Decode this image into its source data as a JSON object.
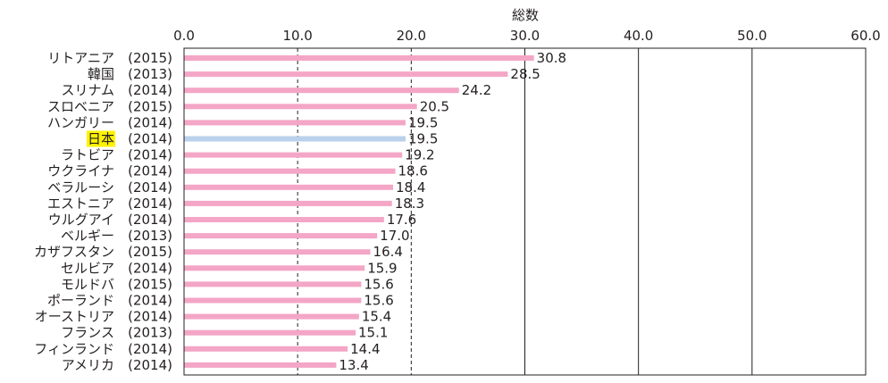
{
  "chart_data": {
    "type": "bar",
    "orientation": "horizontal",
    "title": "総数",
    "xlim": [
      0,
      60
    ],
    "x_ticks": [
      "0.0",
      "10.0",
      "20.0",
      "30.0",
      "40.0",
      "50.0",
      "60.0"
    ],
    "grid": "vertical; dashed at 10.0 and 20.0, solid at 30.0–60.0",
    "categories": [
      {
        "name": "リトアニア",
        "year": "(2015)",
        "value": 30.8,
        "value_label": "30.8"
      },
      {
        "name": "韓国",
        "year": "(2013)",
        "value": 28.5,
        "value_label": "28.5"
      },
      {
        "name": "スリナム",
        "year": "(2014)",
        "value": 24.2,
        "value_label": "24.2"
      },
      {
        "name": "スロベニア",
        "year": "(2015)",
        "value": 20.5,
        "value_label": "20.5"
      },
      {
        "name": "ハンガリー",
        "year": "(2014)",
        "value": 19.5,
        "value_label": "19.5"
      },
      {
        "name": "日本",
        "year": "(2014)",
        "value": 19.5,
        "value_label": "19.5",
        "highlight": true
      },
      {
        "name": "ラトビア",
        "year": "(2014)",
        "value": 19.2,
        "value_label": "19.2"
      },
      {
        "name": "ウクライナ",
        "year": "(2014)",
        "value": 18.6,
        "value_label": "18.6"
      },
      {
        "name": "ベラルーシ",
        "year": "(2014)",
        "value": 18.4,
        "value_label": "18.4"
      },
      {
        "name": "エストニア",
        "year": "(2014)",
        "value": 18.3,
        "value_label": "18.3"
      },
      {
        "name": "ウルグアイ",
        "year": "(2014)",
        "value": 17.6,
        "value_label": "17.6"
      },
      {
        "name": "ベルギー",
        "year": "(2013)",
        "value": 17.0,
        "value_label": "17.0"
      },
      {
        "name": "カザフスタン",
        "year": "(2015)",
        "value": 16.4,
        "value_label": "16.4"
      },
      {
        "name": "セルビア",
        "year": "(2014)",
        "value": 15.9,
        "value_label": "15.9"
      },
      {
        "name": "モルドバ",
        "year": "(2015)",
        "value": 15.6,
        "value_label": "15.6"
      },
      {
        "name": "ポーランド",
        "year": "(2014)",
        "value": 15.6,
        "value_label": "15.6"
      },
      {
        "name": "オーストリア",
        "year": "(2014)",
        "value": 15.4,
        "value_label": "15.4"
      },
      {
        "name": "フランス",
        "year": "(2013)",
        "value": 15.1,
        "value_label": "15.1"
      },
      {
        "name": "フィンランド",
        "year": "(2014)",
        "value": 14.4,
        "value_label": "14.4"
      },
      {
        "name": "アメリカ",
        "year": "(2014)",
        "value": 13.4,
        "value_label": "13.4"
      }
    ],
    "colors": {
      "bar": "#f4a6c6",
      "highlight_bar": "#b9d1ea",
      "highlight_label_bg": "#fff200",
      "grid": "#231f20",
      "text": "#231f20"
    }
  }
}
